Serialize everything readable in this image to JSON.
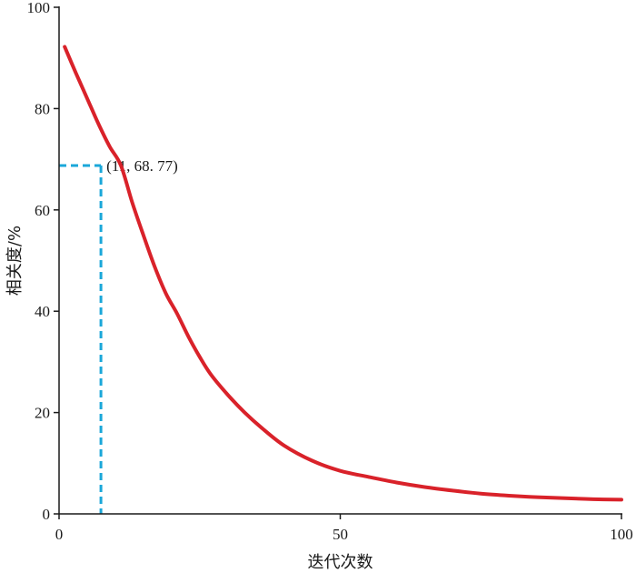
{
  "chart_data": {
    "type": "line",
    "title": "",
    "xlabel": "迭代次数",
    "ylabel": "相关度/%",
    "xlim": [
      0,
      100
    ],
    "ylim": [
      0,
      100
    ],
    "x_ticks": [
      0,
      50,
      100
    ],
    "y_ticks": [
      0,
      20,
      40,
      60,
      80,
      100
    ],
    "grid": false,
    "legend": "none",
    "series": [
      {
        "color": "#d9222a",
        "x": [
          1,
          3,
          5,
          7,
          9,
          11,
          13,
          15,
          17,
          19,
          21,
          23,
          25,
          27,
          30,
          33,
          36,
          40,
          45,
          50,
          55,
          60,
          65,
          70,
          75,
          80,
          85,
          90,
          95,
          100
        ],
        "y": [
          92.2,
          87.0,
          82.0,
          77.0,
          72.5,
          68.77,
          61.5,
          55.0,
          48.8,
          43.5,
          39.5,
          35.0,
          31.0,
          27.5,
          23.5,
          20.0,
          17.0,
          13.5,
          10.5,
          8.5,
          7.3,
          6.2,
          5.3,
          4.6,
          4.0,
          3.6,
          3.3,
          3.1,
          2.9,
          2.8
        ]
      }
    ],
    "annotations": [
      {
        "label": "(11, 68. 77)",
        "x": 11,
        "y": 68.77,
        "color": "#1aa7d9",
        "style": "dashed"
      }
    ]
  }
}
